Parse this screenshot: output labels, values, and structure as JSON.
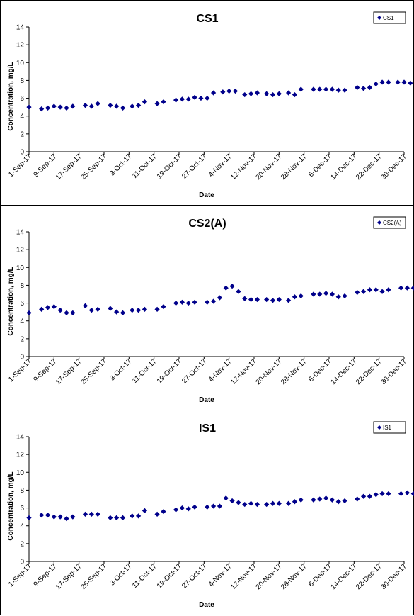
{
  "chart_data": [
    {
      "type": "scatter",
      "title": "CS1",
      "xlabel": "Date",
      "ylabel": "Concentration, mg/L",
      "ylim": [
        0,
        14
      ],
      "yticks": [
        "0",
        "2",
        "4",
        "6",
        "8",
        "10",
        "12",
        "14"
      ],
      "xlim": [
        "2017-09-01",
        "2017-12-30"
      ],
      "xticks": [
        "1-Sep-17",
        "9-Sep-17",
        "17-Sep-17",
        "25-Sep-17",
        "3-Oct-17",
        "11-Oct-17",
        "19-Oct-17",
        "27-Oct-17",
        "4-Nov-17",
        "12-Nov-17",
        "20-Nov-17",
        "28-Nov-17",
        "6-Dec-17",
        "14-Dec-17",
        "22-Dec-17",
        "30-Dec-17"
      ],
      "grid": false,
      "legend": "top-right",
      "color": "#00008b",
      "series": [
        {
          "name": "CS1",
          "x": [
            "2017-09-01",
            "2017-09-05",
            "2017-09-07",
            "2017-09-09",
            "2017-09-11",
            "2017-09-13",
            "2017-09-15",
            "2017-09-19",
            "2017-09-21",
            "2017-09-23",
            "2017-09-27",
            "2017-09-29",
            "2017-10-01",
            "2017-10-04",
            "2017-10-06",
            "2017-10-08",
            "2017-10-12",
            "2017-10-14",
            "2017-10-18",
            "2017-10-20",
            "2017-10-22",
            "2017-10-24",
            "2017-10-26",
            "2017-10-28",
            "2017-10-30",
            "2017-11-02",
            "2017-11-04",
            "2017-11-06",
            "2017-11-09",
            "2017-11-11",
            "2017-11-13",
            "2017-11-16",
            "2017-11-18",
            "2017-11-20",
            "2017-11-23",
            "2017-11-25",
            "2017-11-27",
            "2017-12-01",
            "2017-12-03",
            "2017-12-05",
            "2017-12-07",
            "2017-12-09",
            "2017-12-11",
            "2017-12-15",
            "2017-12-17",
            "2017-12-19",
            "2017-12-21",
            "2017-12-23",
            "2017-12-25",
            "2017-12-28",
            "2017-12-30",
            "2018-01-01"
          ],
          "y": [
            5.0,
            4.8,
            4.9,
            5.1,
            5.0,
            4.9,
            5.1,
            5.2,
            5.1,
            5.4,
            5.2,
            5.1,
            4.9,
            5.1,
            5.2,
            5.6,
            5.4,
            5.6,
            5.8,
            5.9,
            5.9,
            6.1,
            6.0,
            6.0,
            6.6,
            6.7,
            6.8,
            6.8,
            6.4,
            6.5,
            6.6,
            6.5,
            6.4,
            6.5,
            6.6,
            6.4,
            7.0,
            7.0,
            7.0,
            7.0,
            7.0,
            6.9,
            6.9,
            7.2,
            7.1,
            7.2,
            7.6,
            7.8,
            7.8,
            7.8,
            7.8,
            7.7
          ]
        }
      ]
    },
    {
      "type": "scatter",
      "title": "CS2(A)",
      "xlabel": "Date",
      "ylabel": "Concentration, mg/L",
      "ylim": [
        0,
        14
      ],
      "yticks": [
        "0",
        "2",
        "4",
        "6",
        "8",
        "10",
        "12",
        "14"
      ],
      "xlim": [
        "2017-09-01",
        "2017-12-30"
      ],
      "xticks": [
        "1-Sep-17",
        "9-Sep-17",
        "17-Sep-17",
        "25-Sep-17",
        "3-Oct-17",
        "11-Oct-17",
        "19-Oct-17",
        "27-Oct-17",
        "4-Nov-17",
        "12-Nov-17",
        "20-Nov-17",
        "28-Nov-17",
        "6-Dec-17",
        "14-Dec-17",
        "22-Dec-17",
        "30-Dec-17"
      ],
      "grid": false,
      "legend": "top-right",
      "color": "#00008b",
      "series": [
        {
          "name": "CS2(A)",
          "x": [
            "2017-09-01",
            "2017-09-05",
            "2017-09-07",
            "2017-09-09",
            "2017-09-11",
            "2017-09-13",
            "2017-09-15",
            "2017-09-19",
            "2017-09-21",
            "2017-09-23",
            "2017-09-27",
            "2017-09-29",
            "2017-10-01",
            "2017-10-04",
            "2017-10-06",
            "2017-10-08",
            "2017-10-12",
            "2017-10-14",
            "2017-10-18",
            "2017-10-20",
            "2017-10-22",
            "2017-10-24",
            "2017-10-28",
            "2017-10-30",
            "2017-11-01",
            "2017-11-03",
            "2017-11-05",
            "2017-11-07",
            "2017-11-09",
            "2017-11-11",
            "2017-11-13",
            "2017-11-16",
            "2017-11-18",
            "2017-11-20",
            "2017-11-23",
            "2017-11-25",
            "2017-11-27",
            "2017-12-01",
            "2017-12-03",
            "2017-12-05",
            "2017-12-07",
            "2017-12-09",
            "2017-12-11",
            "2017-12-15",
            "2017-12-17",
            "2017-12-19",
            "2017-12-21",
            "2017-12-23",
            "2017-12-25",
            "2017-12-29",
            "2017-12-31",
            "2018-01-02"
          ],
          "y": [
            4.9,
            5.3,
            5.5,
            5.6,
            5.2,
            4.9,
            4.9,
            5.7,
            5.2,
            5.3,
            5.4,
            5.0,
            4.9,
            5.2,
            5.2,
            5.3,
            5.3,
            5.6,
            6.0,
            6.1,
            6.0,
            6.1,
            6.1,
            6.2,
            6.6,
            7.7,
            7.9,
            7.3,
            6.5,
            6.4,
            6.4,
            6.4,
            6.3,
            6.4,
            6.3,
            6.7,
            6.8,
            7.0,
            7.0,
            7.1,
            7.0,
            6.7,
            6.8,
            7.2,
            7.3,
            7.5,
            7.5,
            7.3,
            7.5,
            7.7,
            7.7,
            7.7
          ]
        }
      ]
    },
    {
      "type": "scatter",
      "title": "IS1",
      "xlabel": "Date",
      "ylabel": "Concentration, mg/L",
      "ylim": [
        0,
        14
      ],
      "yticks": [
        "0",
        "2",
        "4",
        "6",
        "8",
        "10",
        "12",
        "14"
      ],
      "xlim": [
        "2017-09-01",
        "2017-12-30"
      ],
      "xticks": [
        "1-Sep-17",
        "9-Sep-17",
        "17-Sep-17",
        "25-Sep-17",
        "3-Oct-17",
        "11-Oct-17",
        "19-Oct-17",
        "27-Oct-17",
        "4-Nov-17",
        "12-Nov-17",
        "20-Nov-17",
        "28-Nov-17",
        "6-Dec-17",
        "14-Dec-17",
        "22-Dec-17",
        "30-Dec-17"
      ],
      "grid": false,
      "legend": "top-right",
      "color": "#00008b",
      "series": [
        {
          "name": "IS1",
          "x": [
            "2017-09-01",
            "2017-09-05",
            "2017-09-07",
            "2017-09-09",
            "2017-09-11",
            "2017-09-13",
            "2017-09-15",
            "2017-09-19",
            "2017-09-21",
            "2017-09-23",
            "2017-09-27",
            "2017-09-29",
            "2017-10-01",
            "2017-10-04",
            "2017-10-06",
            "2017-10-08",
            "2017-10-12",
            "2017-10-14",
            "2017-10-18",
            "2017-10-20",
            "2017-10-22",
            "2017-10-24",
            "2017-10-28",
            "2017-10-30",
            "2017-11-01",
            "2017-11-03",
            "2017-11-05",
            "2017-11-07",
            "2017-11-09",
            "2017-11-11",
            "2017-11-13",
            "2017-11-16",
            "2017-11-18",
            "2017-11-20",
            "2017-11-23",
            "2017-11-25",
            "2017-11-27",
            "2017-12-01",
            "2017-12-03",
            "2017-12-05",
            "2017-12-07",
            "2017-12-09",
            "2017-12-11",
            "2017-12-15",
            "2017-12-17",
            "2017-12-19",
            "2017-12-21",
            "2017-12-23",
            "2017-12-25",
            "2017-12-29",
            "2017-12-31",
            "2018-01-02"
          ],
          "y": [
            4.9,
            5.2,
            5.2,
            5.0,
            5.0,
            4.8,
            5.0,
            5.3,
            5.3,
            5.3,
            4.9,
            4.9,
            4.9,
            5.1,
            5.1,
            5.7,
            5.3,
            5.6,
            5.8,
            6.0,
            5.9,
            6.1,
            6.1,
            6.2,
            6.2,
            7.1,
            6.8,
            6.6,
            6.4,
            6.5,
            6.4,
            6.4,
            6.5,
            6.5,
            6.5,
            6.7,
            6.9,
            6.9,
            7.0,
            7.1,
            6.9,
            6.7,
            6.8,
            7.0,
            7.3,
            7.3,
            7.5,
            7.6,
            7.6,
            7.6,
            7.7,
            7.6
          ]
        }
      ]
    }
  ]
}
